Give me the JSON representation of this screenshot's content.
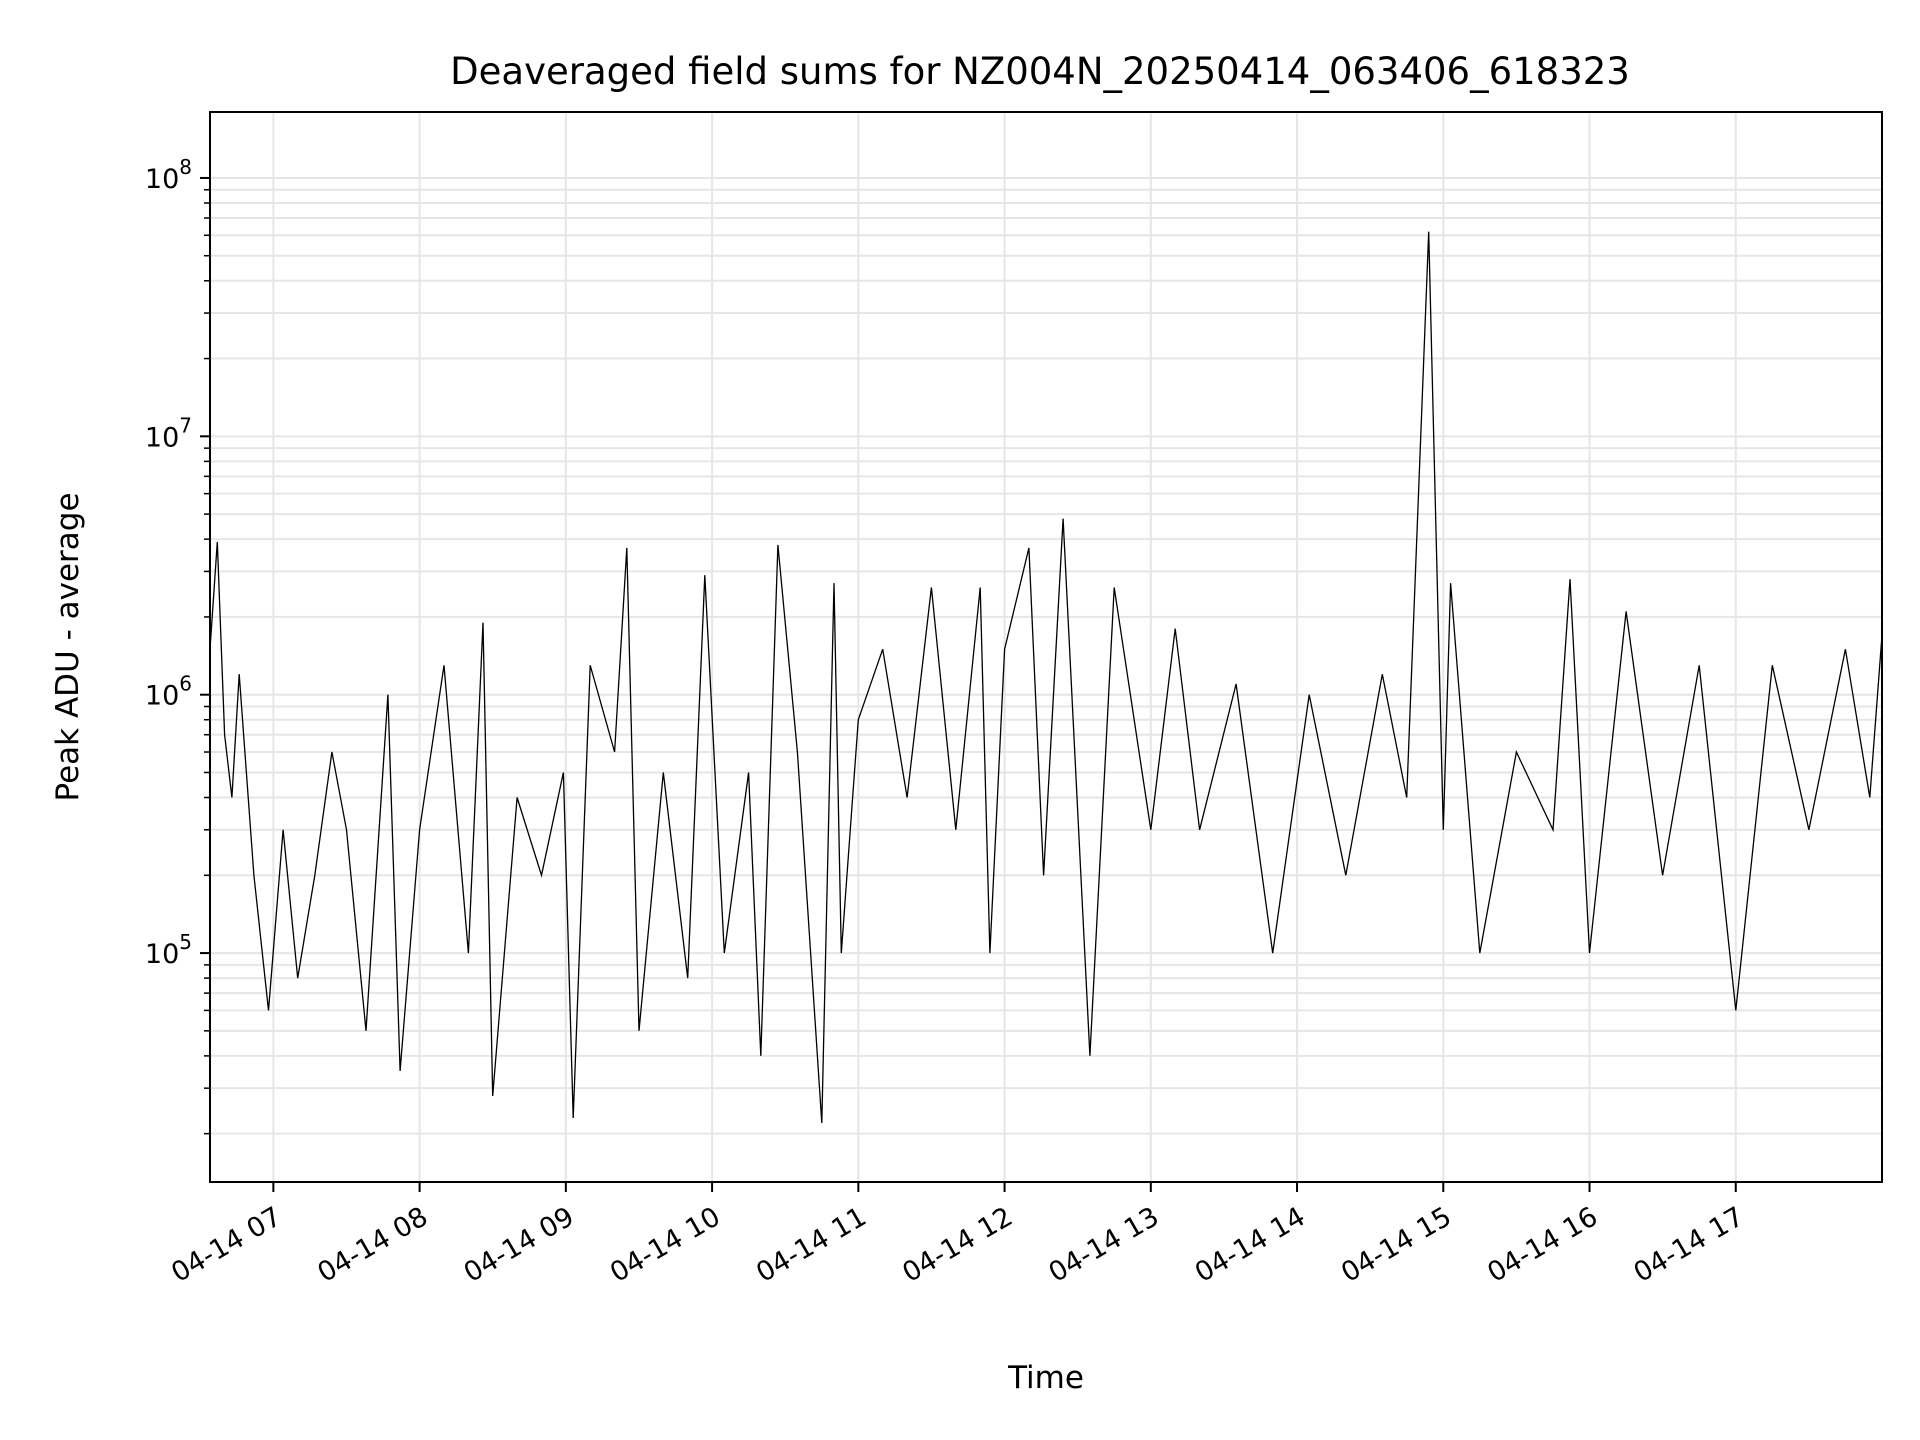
{
  "chart_data": {
    "type": "line",
    "title": "Deaveraged field sums for NZ004N_20250414_063406_618323",
    "xlabel": "Time",
    "ylabel": "Peak ADU - average",
    "y_scale": "log",
    "ylim": [
      13000,
      180000000
    ],
    "xlim": [
      "2025-04-14 06:34",
      "2025-04-14 18:00"
    ],
    "grid": true,
    "line_color": "#000000",
    "grid_color": "#e6e6e6",
    "x_ticks": [
      "04-14 07",
      "04-14 08",
      "04-14 09",
      "04-14 10",
      "04-14 11",
      "04-14 12",
      "04-14 13",
      "04-14 14",
      "04-14 15",
      "04-14 16",
      "04-14 17"
    ],
    "y_ticks": [
      {
        "value": 100000,
        "base": "10",
        "exp": "5"
      },
      {
        "value": 1000000,
        "base": "10",
        "exp": "6"
      },
      {
        "value": 10000000,
        "base": "10",
        "exp": "7"
      },
      {
        "value": 100000000,
        "base": "10",
        "exp": "8"
      }
    ],
    "series": [
      {
        "x": [
          "2025-04-14 06:34",
          "2025-04-14 06:37",
          "2025-04-14 06:40",
          "2025-04-14 06:43",
          "2025-04-14 06:46",
          "2025-04-14 06:52",
          "2025-04-14 06:58",
          "2025-04-14 07:04",
          "2025-04-14 07:10",
          "2025-04-14 07:17",
          "2025-04-14 07:24",
          "2025-04-14 07:30",
          "2025-04-14 07:38",
          "2025-04-14 07:47",
          "2025-04-14 07:52",
          "2025-04-14 08:00",
          "2025-04-14 08:10",
          "2025-04-14 08:20",
          "2025-04-14 08:26",
          "2025-04-14 08:30",
          "2025-04-14 08:40",
          "2025-04-14 08:50",
          "2025-04-14 08:59",
          "2025-04-14 09:03",
          "2025-04-14 09:10",
          "2025-04-14 09:20",
          "2025-04-14 09:25",
          "2025-04-14 09:30",
          "2025-04-14 09:40",
          "2025-04-14 09:50",
          "2025-04-14 09:57",
          "2025-04-14 10:05",
          "2025-04-14 10:15",
          "2025-04-14 10:20",
          "2025-04-14 10:27",
          "2025-04-14 10:35",
          "2025-04-14 10:45",
          "2025-04-14 10:50",
          "2025-04-14 10:53",
          "2025-04-14 11:00",
          "2025-04-14 11:10",
          "2025-04-14 11:20",
          "2025-04-14 11:30",
          "2025-04-14 11:40",
          "2025-04-14 11:50",
          "2025-04-14 11:54",
          "2025-04-14 12:00",
          "2025-04-14 12:10",
          "2025-04-14 12:16",
          "2025-04-14 12:24",
          "2025-04-14 12:35",
          "2025-04-14 12:45",
          "2025-04-14 13:00",
          "2025-04-14 13:10",
          "2025-04-14 13:20",
          "2025-04-14 13:35",
          "2025-04-14 13:50",
          "2025-04-14 14:05",
          "2025-04-14 14:20",
          "2025-04-14 14:35",
          "2025-04-14 14:45",
          "2025-04-14 14:54",
          "2025-04-14 15:00",
          "2025-04-14 15:03",
          "2025-04-14 15:15",
          "2025-04-14 15:30",
          "2025-04-14 15:45",
          "2025-04-14 15:52",
          "2025-04-14 16:00",
          "2025-04-14 16:15",
          "2025-04-14 16:30",
          "2025-04-14 16:45",
          "2025-04-14 17:00",
          "2025-04-14 17:15",
          "2025-04-14 17:30",
          "2025-04-14 17:45",
          "2025-04-14 17:55",
          "2025-04-14 18:00"
        ],
        "y": [
          1500000,
          3900000,
          700000,
          400000,
          1200000,
          200000,
          60000,
          300000,
          80000,
          200000,
          600000,
          300000,
          50000,
          1000000,
          35000,
          300000,
          1300000,
          100000,
          1900000,
          28000,
          400000,
          200000,
          500000,
          23000,
          1300000,
          600000,
          3700000,
          50000,
          500000,
          80000,
          2900000,
          100000,
          500000,
          40000,
          3800000,
          600000,
          22000,
          2700000,
          100000,
          800000,
          1500000,
          400000,
          2600000,
          300000,
          2600000,
          100000,
          1500000,
          3700000,
          200000,
          4800000,
          40000,
          2600000,
          300000,
          1800000,
          300000,
          1100000,
          100000,
          1000000,
          200000,
          1200000,
          400000,
          62000000,
          300000,
          2700000,
          100000,
          600000,
          300000,
          2800000,
          100000,
          2100000,
          200000,
          1300000,
          60000,
          1300000,
          300000,
          1500000,
          400000,
          1700000
        ]
      }
    ]
  }
}
